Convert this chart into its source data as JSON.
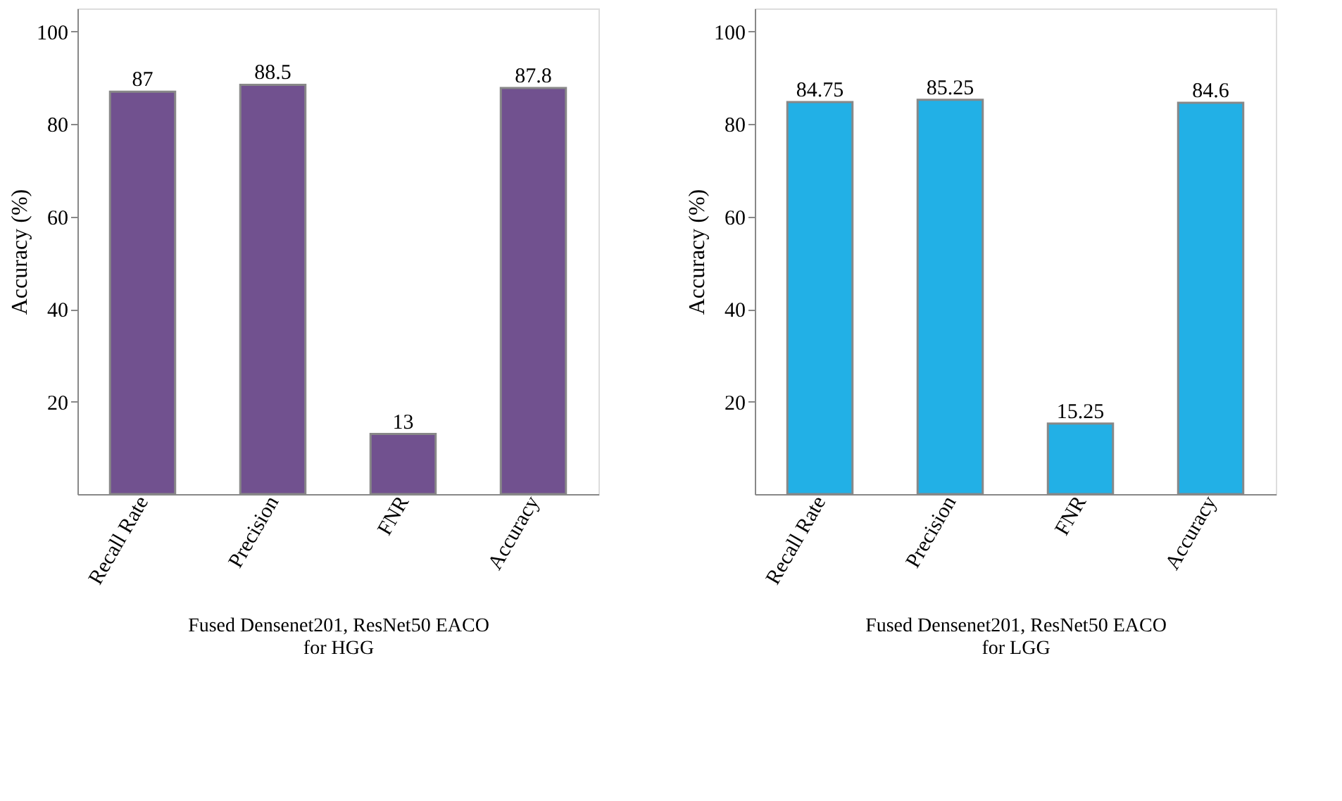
{
  "chart_data": [
    {
      "type": "bar",
      "categories": [
        "Recall Rate",
        "Precision",
        "FNR",
        "Accuracy"
      ],
      "values": [
        87,
        88.5,
        13,
        87.8
      ],
      "color": "#71518f",
      "ylabel": "Accuracy (%)",
      "xlabel": "Fused Densenet201, ResNet50 EACO\nfor HGG",
      "ylim": [
        0,
        105
      ],
      "yticks": [
        20,
        40,
        60,
        80,
        100
      ],
      "data_labels": true,
      "grid": false
    },
    {
      "type": "bar",
      "categories": [
        "Recall Rate",
        "Precision",
        "FNR",
        "Accuracy"
      ],
      "values": [
        84.75,
        85.25,
        15.25,
        84.6
      ],
      "color": "#22b0e6",
      "ylabel": "Accuracy (%)",
      "xlabel": "Fused Densenet201, ResNet50 EACO\nfor LGG",
      "ylim": [
        0,
        105
      ],
      "yticks": [
        20,
        40,
        60,
        80,
        100
      ],
      "data_labels": true,
      "grid": false
    }
  ]
}
